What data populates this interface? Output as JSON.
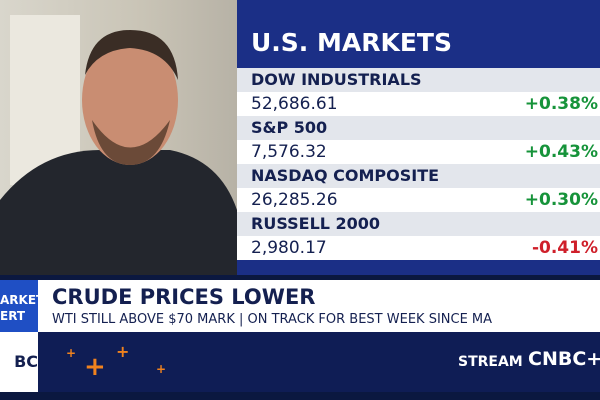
{
  "markets": {
    "title": "U.S. MARKETS",
    "rows": [
      {
        "name": "DOW INDUSTRIALS",
        "value": "52,686.61",
        "change": "+0.38%",
        "direction": "up"
      },
      {
        "name": "S&P 500",
        "value": "7,576.32",
        "change": "+0.43%",
        "direction": "up"
      },
      {
        "name": "NASDAQ COMPOSITE",
        "value": "26,285.26",
        "change": "+0.30%",
        "direction": "up"
      },
      {
        "name": "RUSSELL 2000",
        "value": "2,980.17",
        "change": "-0.41%",
        "direction": "down"
      }
    ]
  },
  "alert": {
    "line1": "ARKET",
    "line2": "ERT"
  },
  "headline": {
    "title": "CRUDE PRICES LOWER",
    "subtitle": "WTI STILL ABOVE $70 MARK | ON TRACK FOR BEST WEEK SINCE MA"
  },
  "footer": {
    "logo_left": "BC",
    "stream": "STREAM",
    "logo_right": "CNBC+"
  }
}
